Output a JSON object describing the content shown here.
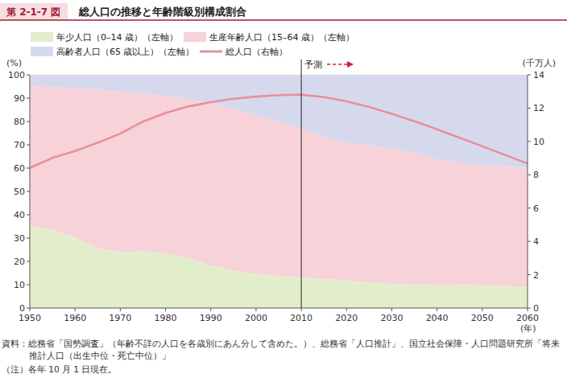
{
  "chart_data": {
    "type": "area",
    "figure_label": "第 2-1-7 図",
    "title": "総人口の推移と年齢階級別構成割合",
    "stacked": true,
    "legend": "top",
    "x": [
      1950,
      1955,
      1960,
      1965,
      1970,
      1975,
      1980,
      1985,
      1990,
      1995,
      2000,
      2005,
      2010,
      2015,
      2020,
      2025,
      2030,
      2035,
      2040,
      2045,
      2050,
      2055,
      2060
    ],
    "xlim": [
      1950,
      2060
    ],
    "xticks": [
      1950,
      1960,
      1970,
      1980,
      1990,
      2000,
      2010,
      2020,
      2030,
      2040,
      2050,
      2060
    ],
    "x_label": "(年)",
    "ylim": [
      0,
      100
    ],
    "yticks": [
      0,
      10,
      20,
      30,
      40,
      50,
      60,
      70,
      80,
      90,
      100
    ],
    "y_label": "(%)",
    "y2lim": [
      0,
      14
    ],
    "y2ticks": [
      0,
      2,
      4,
      6,
      8,
      10,
      12,
      14
    ],
    "y2_label": "(千万人)",
    "series": [
      {
        "name": "年少人口（0–14 歳）（左軸）",
        "type": "area",
        "color": "#e2eecb",
        "values": [
          35.4,
          33.4,
          30.2,
          25.7,
          23.9,
          24.3,
          23.5,
          21.5,
          18.2,
          16.0,
          14.6,
          13.8,
          13.1,
          12.5,
          11.7,
          11.0,
          10.3,
          10.1,
          10.0,
          9.9,
          9.7,
          9.4,
          9.1
        ]
      },
      {
        "name": "生産年齢人口（15–64 歳）（左軸）",
        "type": "area",
        "color": "#f7d2d9",
        "values": [
          59.7,
          61.3,
          64.1,
          68.0,
          69.0,
          67.8,
          67.4,
          68.2,
          69.7,
          69.4,
          68.0,
          66.0,
          63.9,
          60.7,
          59.2,
          58.7,
          58.1,
          56.5,
          53.9,
          52.4,
          51.5,
          51.2,
          51.0
        ]
      },
      {
        "name": "高齢者人口（65 歳以上）（左軸）",
        "type": "area",
        "color": "#d6d9ee",
        "values": [
          4.9,
          5.3,
          5.7,
          6.3,
          7.1,
          7.9,
          9.1,
          10.3,
          12.1,
          14.6,
          17.4,
          20.2,
          23.0,
          26.8,
          29.1,
          30.3,
          31.6,
          33.4,
          36.1,
          37.7,
          38.8,
          39.4,
          39.9
        ]
      },
      {
        "name": "総人口（右軸）",
        "type": "line",
        "axis": "y2",
        "color": "#e8909a",
        "values": [
          8.41,
          9.01,
          9.43,
          9.92,
          10.47,
          11.19,
          11.71,
          12.1,
          12.36,
          12.56,
          12.69,
          12.78,
          12.81,
          12.66,
          12.41,
          12.07,
          11.66,
          11.21,
          10.73,
          10.22,
          9.71,
          9.19,
          8.67
        ]
      }
    ],
    "annotations": [
      {
        "x": 2010,
        "text": "予測"
      }
    ],
    "notes": [
      "資料：総務省「国勢調査」（年齢不詳の人口を各歳別にあん分して含めた。）、総務省「人口推計」、国立社会保障・人口問題研究所「将来",
      "推計人口（出生中位・死亡中位）」",
      "（注）各年 10 月 1 日現在。"
    ]
  }
}
